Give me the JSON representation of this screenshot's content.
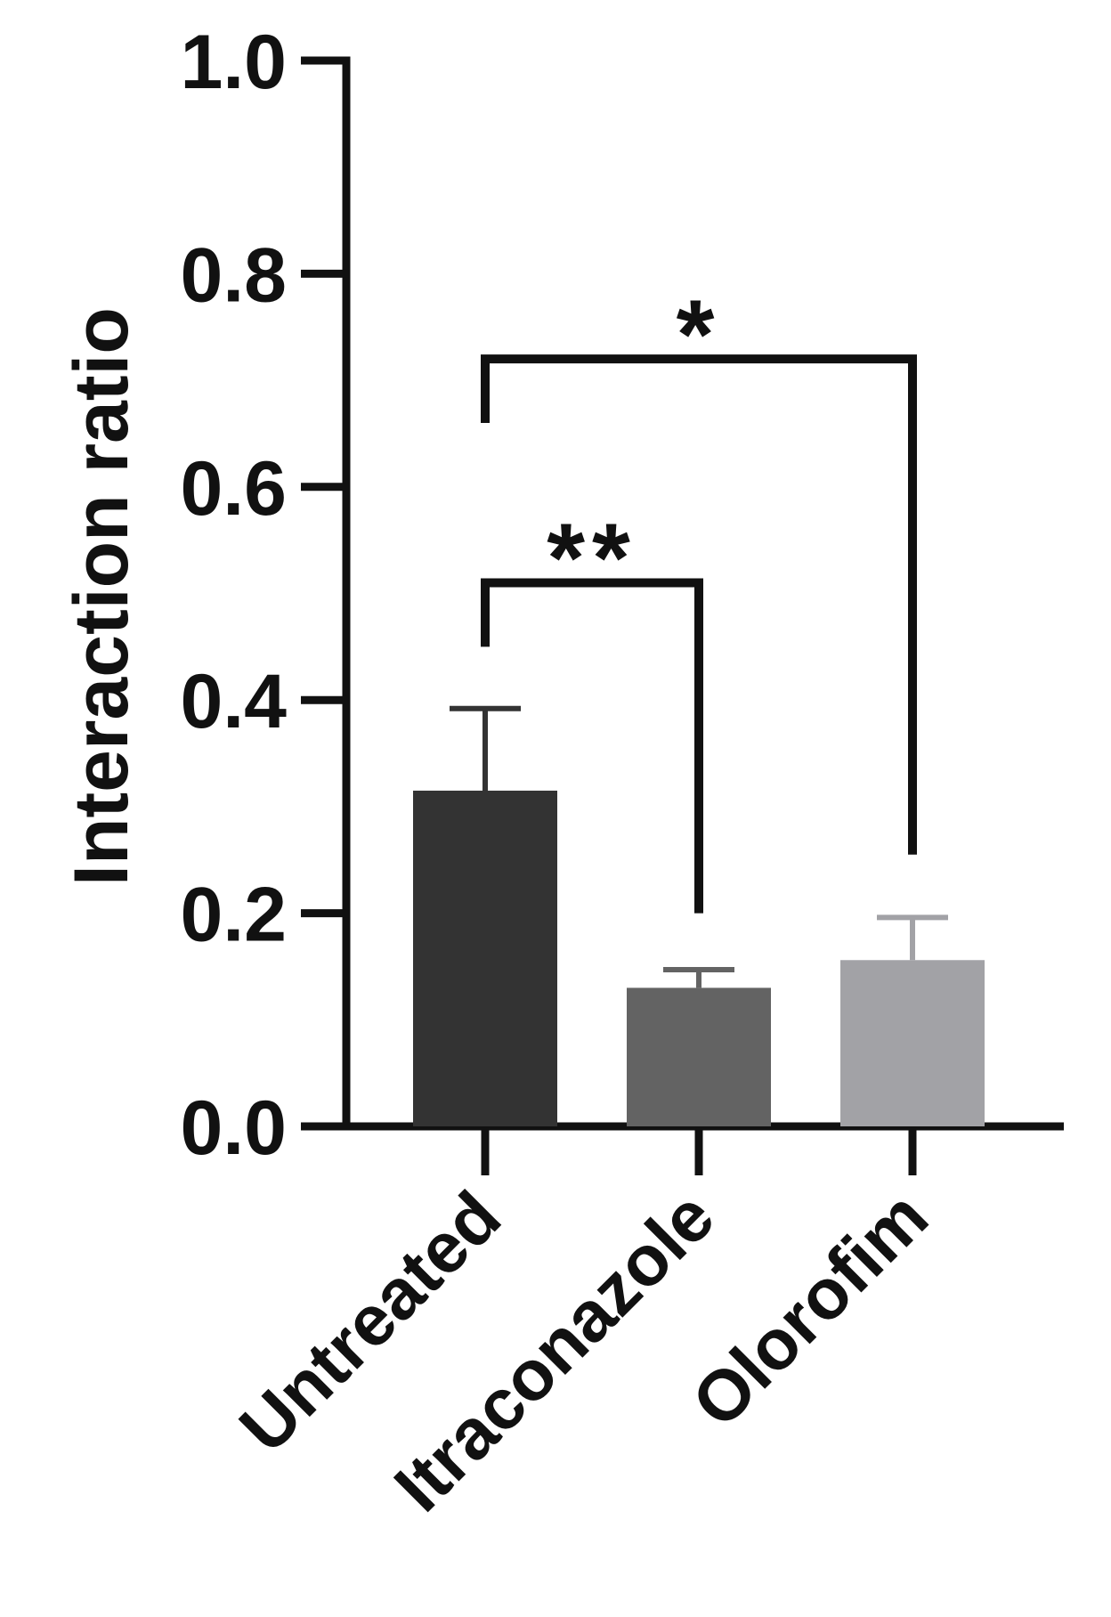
{
  "chart_data": {
    "type": "bar",
    "title": "",
    "xlabel": "",
    "ylabel": "Interaction ratio",
    "ylim": [
      0,
      1.0
    ],
    "yticks": [
      "0.0",
      "0.2",
      "0.4",
      "0.6",
      "0.8",
      "1.0"
    ],
    "categories": [
      "Untreated",
      "Itraconazole",
      "Olorofim"
    ],
    "values": [
      0.315,
      0.13,
      0.156
    ],
    "errors": [
      0.077,
      0.017,
      0.04
    ],
    "bar_colors": [
      "#333333",
      "#636363",
      "#a2a2a6"
    ],
    "grid": false,
    "legend": "none",
    "significance": [
      {
        "from": "Untreated",
        "to": "Itraconazole",
        "label": "**",
        "left_end": 0.45,
        "right_end": 0.2,
        "top": 0.51,
        "label_y": 0.56
      },
      {
        "from": "Untreated",
        "to": "Olorofim",
        "label": "*",
        "left_end": 0.66,
        "right_end": 0.255,
        "top": 0.72,
        "label_y": 0.77
      }
    ]
  }
}
